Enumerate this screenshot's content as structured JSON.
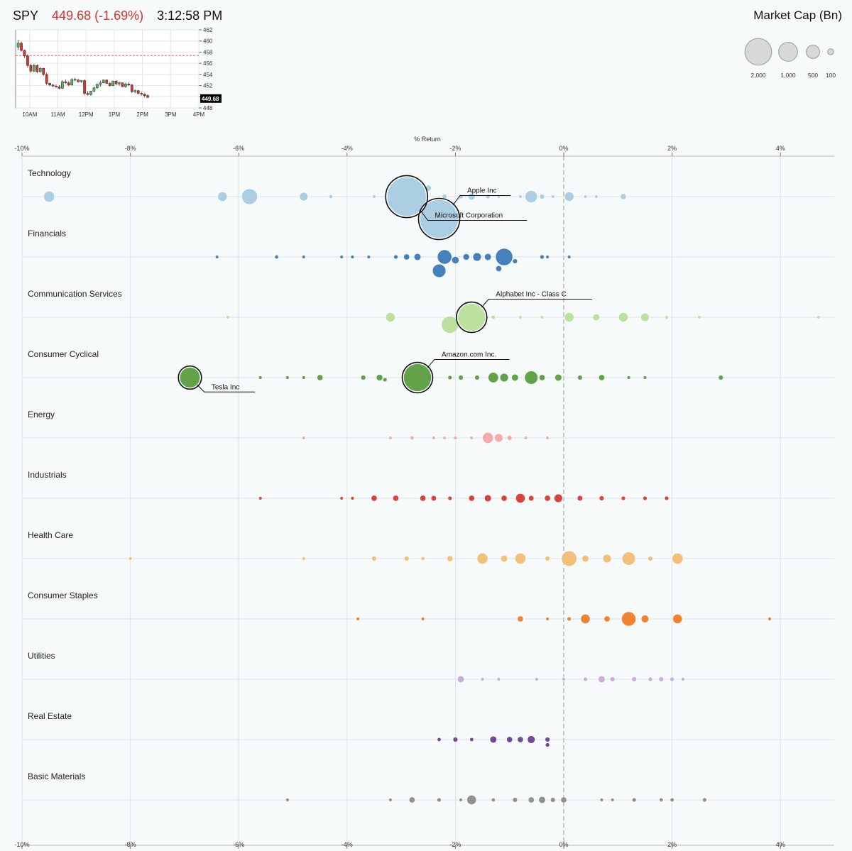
{
  "header": {
    "ticker": "SPY",
    "price_change": "449.68 (-1.69%)",
    "time": "3:12:58 PM"
  },
  "colors": {
    "down": "#d2352b",
    "up": "#5bb15b",
    "grid": "#dde3e6",
    "zero_line": "#999999",
    "background": "#f6fafb"
  },
  "mini_chart": {
    "y_ticks": [
      448,
      450,
      452,
      454,
      456,
      458,
      460,
      462
    ],
    "y_range": [
      448,
      462
    ],
    "x_labels": [
      "10AM",
      "11AM",
      "12PM",
      "1PM",
      "2PM",
      "3PM",
      "4PM"
    ],
    "prev_close": 457.4,
    "last_price": 449.68,
    "last_label": "449.68",
    "candles": [
      {
        "o": 458.9,
        "h": 460.2,
        "l": 458.4,
        "c": 459.6
      },
      {
        "o": 459.6,
        "h": 459.9,
        "l": 458.1,
        "c": 458.3
      },
      {
        "o": 458.3,
        "h": 458.5,
        "l": 457.0,
        "c": 457.3
      },
      {
        "o": 457.3,
        "h": 457.6,
        "l": 455.2,
        "c": 455.6
      },
      {
        "o": 455.6,
        "h": 455.9,
        "l": 454.3,
        "c": 454.6
      },
      {
        "o": 454.6,
        "h": 455.9,
        "l": 454.4,
        "c": 455.6
      },
      {
        "o": 455.6,
        "h": 455.8,
        "l": 454.2,
        "c": 454.5
      },
      {
        "o": 454.5,
        "h": 455.3,
        "l": 454.3,
        "c": 455.1
      },
      {
        "o": 455.1,
        "h": 455.2,
        "l": 453.7,
        "c": 454.0
      },
      {
        "o": 454.0,
        "h": 454.3,
        "l": 452.1,
        "c": 452.4
      },
      {
        "o": 452.4,
        "h": 452.6,
        "l": 451.9,
        "c": 452.1
      },
      {
        "o": 452.1,
        "h": 452.3,
        "l": 451.7,
        "c": 451.9
      },
      {
        "o": 451.9,
        "h": 452.2,
        "l": 451.6,
        "c": 451.8
      },
      {
        "o": 451.8,
        "h": 452.1,
        "l": 451.3,
        "c": 451.5
      },
      {
        "o": 451.5,
        "h": 453.0,
        "l": 451.4,
        "c": 452.7
      },
      {
        "o": 452.7,
        "h": 453.1,
        "l": 452.3,
        "c": 452.5
      },
      {
        "o": 452.5,
        "h": 452.8,
        "l": 451.9,
        "c": 452.1
      },
      {
        "o": 452.1,
        "h": 453.3,
        "l": 452.0,
        "c": 453.1
      },
      {
        "o": 453.1,
        "h": 453.4,
        "l": 452.8,
        "c": 453.0
      },
      {
        "o": 453.0,
        "h": 453.2,
        "l": 452.5,
        "c": 452.7
      },
      {
        "o": 452.7,
        "h": 453.0,
        "l": 452.5,
        "c": 452.9
      },
      {
        "o": 452.9,
        "h": 453.1,
        "l": 450.3,
        "c": 450.6
      },
      {
        "o": 450.6,
        "h": 451.0,
        "l": 450.2,
        "c": 450.4
      },
      {
        "o": 450.4,
        "h": 451.1,
        "l": 450.2,
        "c": 451.0
      },
      {
        "o": 451.0,
        "h": 451.8,
        "l": 450.8,
        "c": 451.6
      },
      {
        "o": 451.6,
        "h": 452.4,
        "l": 451.4,
        "c": 452.2
      },
      {
        "o": 452.2,
        "h": 452.9,
        "l": 451.8,
        "c": 452.5
      },
      {
        "o": 452.5,
        "h": 453.1,
        "l": 452.4,
        "c": 453.0
      },
      {
        "o": 453.0,
        "h": 453.1,
        "l": 452.3,
        "c": 452.4
      },
      {
        "o": 452.4,
        "h": 452.6,
        "l": 451.8,
        "c": 452.0
      },
      {
        "o": 452.0,
        "h": 452.9,
        "l": 451.9,
        "c": 452.8
      },
      {
        "o": 452.8,
        "h": 453.0,
        "l": 452.1,
        "c": 452.3
      },
      {
        "o": 452.3,
        "h": 452.7,
        "l": 452.0,
        "c": 452.5
      },
      {
        "o": 452.5,
        "h": 452.6,
        "l": 451.7,
        "c": 451.8
      },
      {
        "o": 451.8,
        "h": 452.5,
        "l": 451.6,
        "c": 452.3
      },
      {
        "o": 452.3,
        "h": 452.6,
        "l": 451.9,
        "c": 452.1
      },
      {
        "o": 452.1,
        "h": 452.3,
        "l": 450.7,
        "c": 450.9
      },
      {
        "o": 450.9,
        "h": 451.3,
        "l": 450.6,
        "c": 451.1
      },
      {
        "o": 451.1,
        "h": 451.2,
        "l": 450.4,
        "c": 450.6
      },
      {
        "o": 450.6,
        "h": 450.9,
        "l": 450.2,
        "c": 450.5
      },
      {
        "o": 450.5,
        "h": 450.6,
        "l": 449.9,
        "c": 450.2
      },
      {
        "o": 450.2,
        "h": 450.4,
        "l": 449.7,
        "c": 449.9
      }
    ]
  },
  "legend": {
    "title": "Market Cap (Bn)",
    "sizes": [
      {
        "value": 2000,
        "label": "2,000"
      },
      {
        "value": 1000,
        "label": "1,000"
      },
      {
        "value": 500,
        "label": "500"
      },
      {
        "value": 100,
        "label": "100"
      }
    ]
  },
  "chart_data": {
    "type": "scatter",
    "title": "% Return",
    "xlabel": "% Return",
    "ylabel": "",
    "xlim": [
      -10,
      5
    ],
    "x_ticks": [
      -10,
      -8,
      -6,
      -4,
      -2,
      0,
      2,
      4
    ],
    "x_tick_labels": [
      "-10%",
      "-8%",
      "-6%",
      "-4%",
      "-2%",
      "0%",
      "2%",
      "4%"
    ],
    "grid": true,
    "zero_line": true,
    "size_metric": "Market Cap (Bn)",
    "sectors": [
      {
        "name": "Technology",
        "color": "#a8cbe1",
        "stocks": [
          [
            -9.5,
            200
          ],
          [
            -6.3,
            150
          ],
          [
            -5.8,
            420
          ],
          [
            -4.8,
            120
          ],
          [
            -4.3,
            25
          ],
          [
            -3.5,
            15
          ],
          [
            -2.9,
            2600
          ],
          [
            -2.3,
            2500
          ],
          [
            -2.5,
            60
          ],
          [
            -2.2,
            40
          ],
          [
            -1.9,
            35
          ],
          [
            -1.7,
            80
          ],
          [
            -1.4,
            35
          ],
          [
            -1.2,
            20
          ],
          [
            -0.8,
            20
          ],
          [
            -0.6,
            250
          ],
          [
            -0.4,
            40
          ],
          [
            -0.2,
            20
          ],
          [
            0.1,
            150
          ],
          [
            0.4,
            20
          ],
          [
            0.6,
            20
          ],
          [
            1.1,
            60
          ]
        ],
        "labels": [
          {
            "name": "Apple Inc",
            "x": -2.3,
            "cap": 2500,
            "dir": "up"
          },
          {
            "name": "Microsoft Corporation",
            "x": -2.9,
            "cap": 2600,
            "dir": "down"
          }
        ]
      },
      {
        "name": "Financials",
        "color": "#3b7ab8",
        "stocks": [
          [
            -6.4,
            20
          ],
          [
            -5.3,
            25
          ],
          [
            -4.8,
            20
          ],
          [
            -4.1,
            15
          ],
          [
            -3.9,
            20
          ],
          [
            -3.6,
            15
          ],
          [
            -3.1,
            30
          ],
          [
            -2.9,
            60
          ],
          [
            -2.7,
            80
          ],
          [
            -2.3,
            300
          ],
          [
            -2.2,
            350
          ],
          [
            -2.0,
            90
          ],
          [
            -1.8,
            70
          ],
          [
            -1.6,
            120
          ],
          [
            -1.4,
            80
          ],
          [
            -1.2,
            60
          ],
          [
            -1.1,
            500
          ],
          [
            -0.9,
            40
          ],
          [
            -0.4,
            30
          ],
          [
            -0.3,
            20
          ],
          [
            0.1,
            20
          ]
        ]
      },
      {
        "name": "Communication Services",
        "color": "#b9df9a",
        "stocks": [
          [
            -6.2,
            12
          ],
          [
            -3.2,
            150
          ],
          [
            -2.1,
            500
          ],
          [
            -1.7,
            1300
          ],
          [
            -1.3,
            30
          ],
          [
            -0.8,
            20
          ],
          [
            -0.4,
            15
          ],
          [
            0.1,
            150
          ],
          [
            0.6,
            80
          ],
          [
            1.1,
            150
          ],
          [
            1.5,
            120
          ],
          [
            1.9,
            20
          ],
          [
            2.5,
            12
          ],
          [
            4.7,
            12
          ]
        ],
        "labels": [
          {
            "name": "Alphabet Inc - Class C",
            "x": -1.7,
            "cap": 1300,
            "dir": "up"
          }
        ]
      },
      {
        "name": "Consumer Cyclical",
        "color": "#5a9e3f",
        "stocks": [
          [
            -6.9,
            700
          ],
          [
            -5.6,
            20
          ],
          [
            -5.1,
            20
          ],
          [
            -4.8,
            20
          ],
          [
            -4.5,
            60
          ],
          [
            -3.7,
            40
          ],
          [
            -3.4,
            70
          ],
          [
            -3.3,
            30
          ],
          [
            -2.7,
            1300
          ],
          [
            -2.1,
            30
          ],
          [
            -1.9,
            40
          ],
          [
            -1.6,
            40
          ],
          [
            -1.3,
            180
          ],
          [
            -1.1,
            120
          ],
          [
            -0.9,
            80
          ],
          [
            -0.6,
            300
          ],
          [
            -0.4,
            60
          ],
          [
            -0.1,
            80
          ],
          [
            0.3,
            40
          ],
          [
            0.7,
            60
          ],
          [
            1.2,
            20
          ],
          [
            1.5,
            20
          ],
          [
            2.9,
            40
          ]
        ],
        "labels": [
          {
            "name": "Amazon.com Inc.",
            "x": -2.7,
            "cap": 1300,
            "dir": "up"
          },
          {
            "name": "Tesla Inc",
            "x": -6.9,
            "cap": 700,
            "dir": "down"
          }
        ]
      },
      {
        "name": "Energy",
        "color": "#f4a7a6",
        "stocks": [
          [
            -4.8,
            15
          ],
          [
            -3.2,
            15
          ],
          [
            -2.8,
            25
          ],
          [
            -2.4,
            20
          ],
          [
            -2.2,
            15
          ],
          [
            -2.0,
            15
          ],
          [
            -1.7,
            20
          ],
          [
            -1.4,
            200
          ],
          [
            -1.2,
            120
          ],
          [
            -1.0,
            40
          ],
          [
            -0.7,
            20
          ],
          [
            -0.3,
            15
          ]
        ]
      },
      {
        "name": "Industrials",
        "color": "#d63a30",
        "stocks": [
          [
            -5.6,
            15
          ],
          [
            -4.1,
            15
          ],
          [
            -3.9,
            20
          ],
          [
            -3.5,
            60
          ],
          [
            -3.1,
            60
          ],
          [
            -2.6,
            60
          ],
          [
            -2.4,
            50
          ],
          [
            -2.1,
            30
          ],
          [
            -1.7,
            60
          ],
          [
            -1.4,
            80
          ],
          [
            -1.1,
            60
          ],
          [
            -0.8,
            150
          ],
          [
            -0.6,
            50
          ],
          [
            -0.3,
            60
          ],
          [
            -0.1,
            120
          ],
          [
            0.3,
            50
          ],
          [
            0.7,
            40
          ],
          [
            1.1,
            30
          ],
          [
            1.5,
            30
          ],
          [
            1.9,
            30
          ]
        ]
      },
      {
        "name": "Health Care",
        "color": "#f1bd74",
        "stocks": [
          [
            -8.0,
            20
          ],
          [
            -4.8,
            15
          ],
          [
            -3.5,
            40
          ],
          [
            -2.9,
            40
          ],
          [
            -2.6,
            25
          ],
          [
            -2.1,
            60
          ],
          [
            -1.5,
            200
          ],
          [
            -1.1,
            80
          ],
          [
            -0.8,
            200
          ],
          [
            -0.3,
            40
          ],
          [
            0.1,
            400
          ],
          [
            0.4,
            80
          ],
          [
            0.8,
            120
          ],
          [
            1.2,
            300
          ],
          [
            1.6,
            40
          ],
          [
            2.1,
            200
          ]
        ]
      },
      {
        "name": "Consumer Staples",
        "color": "#ef7c27",
        "stocks": [
          [
            -3.8,
            15
          ],
          [
            -2.6,
            20
          ],
          [
            -0.8,
            60
          ],
          [
            -0.3,
            20
          ],
          [
            0.1,
            30
          ],
          [
            0.4,
            150
          ],
          [
            0.8,
            60
          ],
          [
            1.2,
            350
          ],
          [
            1.5,
            100
          ],
          [
            2.1,
            150
          ],
          [
            3.8,
            20
          ]
        ]
      },
      {
        "name": "Utilities",
        "color": "#c4acd6",
        "stocks": [
          [
            -1.9,
            80
          ],
          [
            -1.5,
            20
          ],
          [
            -1.2,
            20
          ],
          [
            -0.5,
            15
          ],
          [
            0.0,
            20
          ],
          [
            0.4,
            30
          ],
          [
            0.7,
            80
          ],
          [
            0.9,
            40
          ],
          [
            1.3,
            40
          ],
          [
            1.6,
            30
          ],
          [
            1.8,
            40
          ],
          [
            2.0,
            30
          ],
          [
            2.2,
            15
          ]
        ]
      },
      {
        "name": "Real Estate",
        "color": "#6a3f98",
        "stocks": [
          [
            -2.3,
            25
          ],
          [
            -2.0,
            40
          ],
          [
            -1.7,
            25
          ],
          [
            -1.3,
            80
          ],
          [
            -1.0,
            60
          ],
          [
            -0.8,
            60
          ],
          [
            -0.6,
            100
          ],
          [
            -0.3,
            40
          ],
          [
            -0.3,
            30
          ]
        ]
      },
      {
        "name": "Basic Materials",
        "color": "#8a8a8a",
        "stocks": [
          [
            -5.1,
            20
          ],
          [
            -3.2,
            15
          ],
          [
            -2.8,
            60
          ],
          [
            -2.3,
            30
          ],
          [
            -1.9,
            20
          ],
          [
            -1.7,
            150
          ],
          [
            -1.3,
            25
          ],
          [
            -0.9,
            40
          ],
          [
            -0.6,
            60
          ],
          [
            -0.4,
            80
          ],
          [
            -0.2,
            40
          ],
          [
            0.0,
            60
          ],
          [
            0.7,
            20
          ],
          [
            0.9,
            20
          ],
          [
            1.3,
            30
          ],
          [
            1.8,
            25
          ],
          [
            2.0,
            25
          ],
          [
            2.6,
            30
          ]
        ]
      }
    ]
  }
}
